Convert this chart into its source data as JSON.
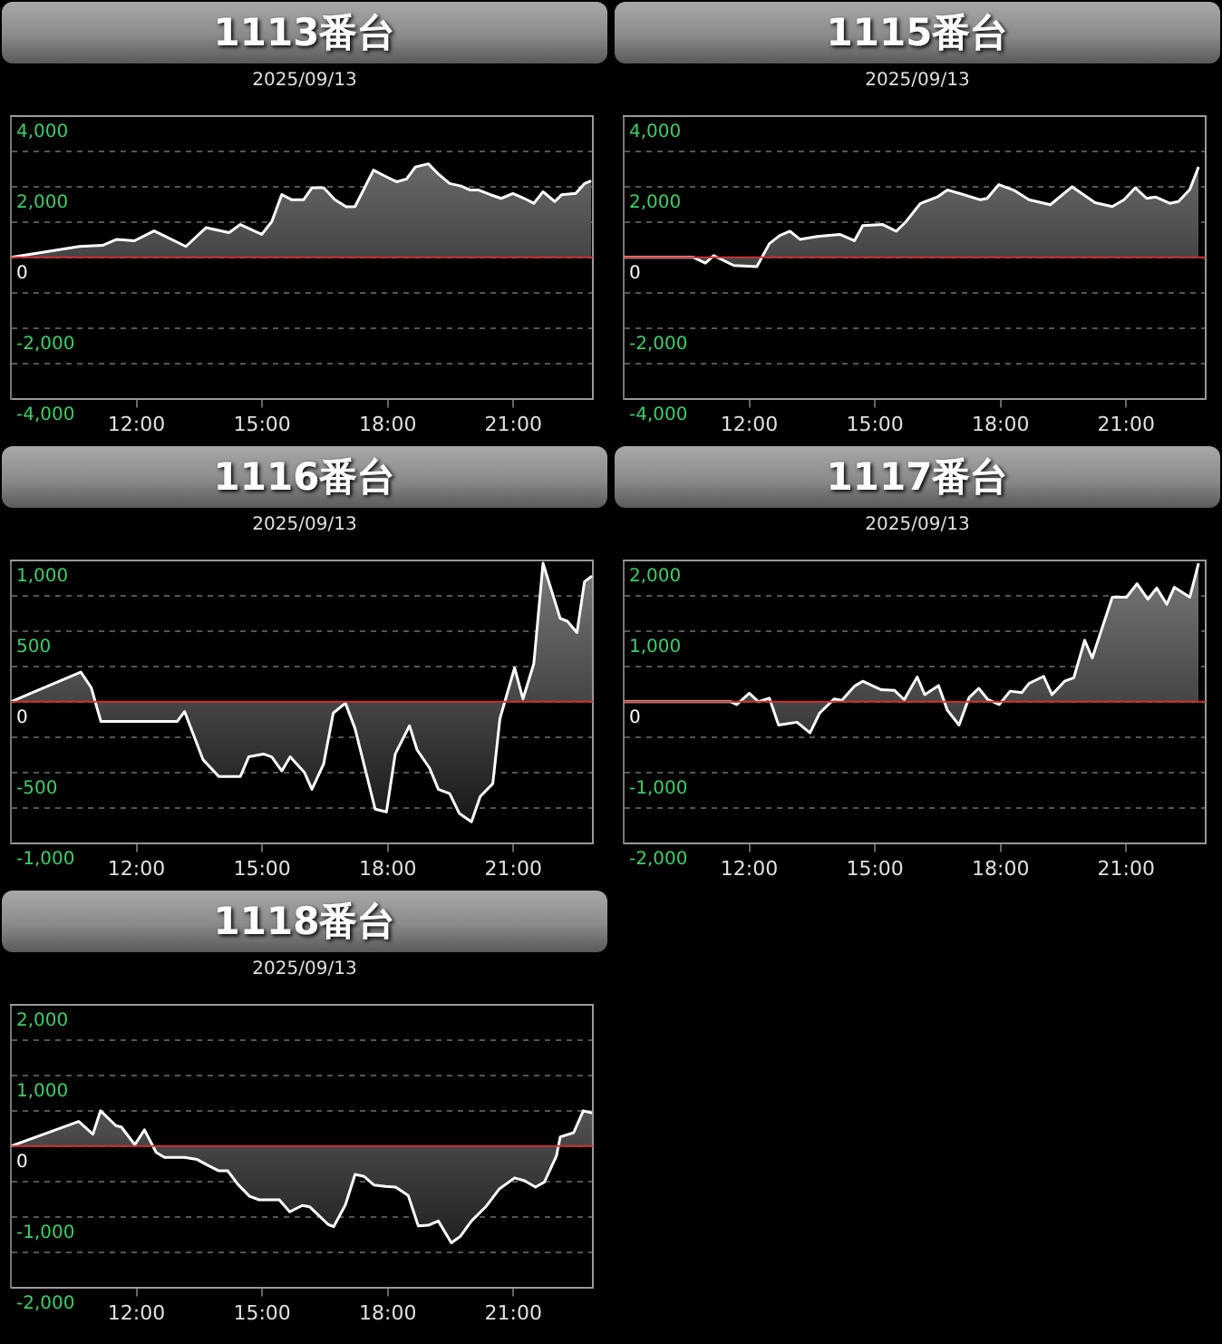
{
  "chart_data": [
    {
      "type": "area",
      "title": "1113番台",
      "subtitle": "2025/09/13",
      "xlim": [
        9,
        22.9
      ],
      "xticks": [
        {
          "value": 12,
          "label": "12:00"
        },
        {
          "value": 15,
          "label": "15:00"
        },
        {
          "value": 18,
          "label": "18:00"
        },
        {
          "value": 21,
          "label": "21:00"
        }
      ],
      "ylim": [
        -4000,
        4000
      ],
      "yticks": [
        {
          "value": -4000,
          "label": "-4,000"
        },
        {
          "value": -3000,
          "label": null
        },
        {
          "value": -2000,
          "label": "-2,000"
        },
        {
          "value": -1000,
          "label": null
        },
        {
          "value": 0,
          "label": "0"
        },
        {
          "value": 1000,
          "label": null
        },
        {
          "value": 2000,
          "label": "2,000"
        },
        {
          "value": 3000,
          "label": null
        },
        {
          "value": 4000,
          "label": "4,000"
        }
      ],
      "grid": "y",
      "legend": false,
      "marker": "none",
      "ref_lines": [
        {
          "axis": "y",
          "value": 0,
          "color": "#d03030"
        }
      ],
      "series": [
        {
          "color": "#ffffff",
          "x": [
            9,
            10.64,
            11.19,
            11.53,
            11.95,
            12.42,
            12.7,
            13.18,
            13.66,
            14.21,
            14.48,
            14.99,
            15.23,
            15.47,
            15.71,
            15.99,
            16.19,
            16.47,
            16.74,
            17.01,
            17.22,
            17.66,
            17.97,
            18.21,
            18.45,
            18.66,
            18.97,
            19.21,
            19.48,
            19.75,
            19.96,
            20.16,
            20.44,
            20.71,
            20.99,
            21.26,
            21.49,
            21.71,
            21.99,
            22.15,
            22.49,
            22.7,
            22.86
          ],
          "values": [
            0,
            310,
            340,
            510,
            470,
            750,
            590,
            310,
            840,
            700,
            930,
            650,
            1010,
            1780,
            1630,
            1630,
            1970,
            1970,
            1630,
            1430,
            1440,
            2470,
            2280,
            2140,
            2220,
            2560,
            2650,
            2360,
            2090,
            2020,
            1910,
            1910,
            1780,
            1670,
            1810,
            1670,
            1530,
            1860,
            1580,
            1770,
            1810,
            2090,
            2170
          ]
        }
      ]
    },
    {
      "type": "area",
      "title": "1115番台",
      "subtitle": "2025/09/13",
      "xlim": [
        9,
        22.9
      ],
      "xticks": [
        {
          "value": 12,
          "label": "12:00"
        },
        {
          "value": 15,
          "label": "15:00"
        },
        {
          "value": 18,
          "label": "18:00"
        },
        {
          "value": 21,
          "label": "21:00"
        }
      ],
      "ylim": [
        -4000,
        4000
      ],
      "yticks": [
        {
          "value": -4000,
          "label": "-4,000"
        },
        {
          "value": -3000,
          "label": null
        },
        {
          "value": -2000,
          "label": "-2,000"
        },
        {
          "value": -1000,
          "label": null
        },
        {
          "value": 0,
          "label": "0"
        },
        {
          "value": 1000,
          "label": null
        },
        {
          "value": 2000,
          "label": "2,000"
        },
        {
          "value": 3000,
          "label": null
        },
        {
          "value": 4000,
          "label": "4,000"
        }
      ],
      "grid": "y",
      "legend": false,
      "marker": "none",
      "ref_lines": [
        {
          "axis": "y",
          "value": 0,
          "color": "#d03030"
        }
      ],
      "series": [
        {
          "color": "#ffffff",
          "x": [
            9,
            10.67,
            10.95,
            11.15,
            11.63,
            12.18,
            12.48,
            12.73,
            12.97,
            13.21,
            13.62,
            14.16,
            14.51,
            14.71,
            15.19,
            15.51,
            15.74,
            16.08,
            16.49,
            16.73,
            17.11,
            17.52,
            17.68,
            17.96,
            18.34,
            18.68,
            19.19,
            19.71,
            20.26,
            20.67,
            20.95,
            21.22,
            21.49,
            21.7,
            22.04,
            22.25,
            22.52,
            22.73
          ],
          "values": [
            0,
            0,
            -160,
            50,
            -230,
            -260,
            390,
            620,
            740,
            510,
            590,
            650,
            470,
            900,
            930,
            740,
            1010,
            1520,
            1710,
            1910,
            1780,
            1630,
            1670,
            2060,
            1890,
            1630,
            1490,
            2000,
            1550,
            1440,
            1630,
            1970,
            1670,
            1710,
            1530,
            1580,
            1920,
            2560
          ]
        }
      ]
    },
    {
      "type": "area",
      "title": "1116番台",
      "subtitle": "2025/09/13",
      "xlim": [
        9,
        22.9
      ],
      "xticks": [
        {
          "value": 12,
          "label": "12:00"
        },
        {
          "value": 15,
          "label": "15:00"
        },
        {
          "value": 18,
          "label": "18:00"
        },
        {
          "value": 21,
          "label": "21:00"
        }
      ],
      "ylim": [
        -1000,
        1000
      ],
      "yticks": [
        {
          "value": -1000,
          "label": "-1,000"
        },
        {
          "value": -750,
          "label": null
        },
        {
          "value": -500,
          "label": "-500"
        },
        {
          "value": -250,
          "label": null
        },
        {
          "value": 0,
          "label": "0"
        },
        {
          "value": 250,
          "label": null
        },
        {
          "value": 500,
          "label": "500"
        },
        {
          "value": 750,
          "label": null
        },
        {
          "value": 1000,
          "label": "1,000"
        }
      ],
      "grid": "y",
      "legend": false,
      "marker": "none",
      "ref_lines": [
        {
          "axis": "y",
          "value": 0,
          "color": "#d03030"
        }
      ],
      "series": [
        {
          "color": "#ffffff",
          "x": [
            9,
            10.67,
            10.92,
            11.15,
            12.97,
            13.15,
            13.59,
            13.97,
            14.48,
            14.68,
            15.03,
            15.23,
            15.47,
            15.67,
            16.01,
            16.19,
            16.47,
            16.7,
            16.99,
            17.22,
            17.7,
            17.97,
            18.18,
            18.52,
            18.7,
            19.0,
            19.21,
            19.48,
            19.71,
            20.0,
            20.21,
            20.51,
            20.68,
            21.03,
            21.23,
            21.49,
            21.71,
            22.12,
            22.29,
            22.52,
            22.7,
            22.88
          ],
          "values": [
            0,
            210,
            100,
            -140,
            -140,
            -70,
            -410,
            -530,
            -530,
            -390,
            -370,
            -390,
            -490,
            -390,
            -500,
            -620,
            -440,
            -80,
            -10,
            -190,
            -760,
            -780,
            -370,
            -170,
            -340,
            -470,
            -620,
            -650,
            -790,
            -850,
            -670,
            -580,
            -120,
            240,
            20,
            270,
            980,
            590,
            570,
            490,
            850,
            890
          ]
        }
      ]
    },
    {
      "type": "area",
      "title": "1117番台",
      "subtitle": "2025/09/13",
      "xlim": [
        9,
        22.9
      ],
      "xticks": [
        {
          "value": 12,
          "label": "12:00"
        },
        {
          "value": 15,
          "label": "15:00"
        },
        {
          "value": 18,
          "label": "18:00"
        },
        {
          "value": 21,
          "label": "21:00"
        }
      ],
      "ylim": [
        -2000,
        2000
      ],
      "yticks": [
        {
          "value": -2000,
          "label": "-2,000"
        },
        {
          "value": -1500,
          "label": null
        },
        {
          "value": -1000,
          "label": "-1,000"
        },
        {
          "value": -500,
          "label": null
        },
        {
          "value": 0,
          "label": "0"
        },
        {
          "value": 500,
          "label": null
        },
        {
          "value": 1000,
          "label": "1,000"
        },
        {
          "value": 1500,
          "label": null
        },
        {
          "value": 2000,
          "label": "2,000"
        }
      ],
      "grid": "y",
      "legend": false,
      "marker": "none",
      "ref_lines": [
        {
          "axis": "y",
          "value": 0,
          "color": "#d03030"
        }
      ],
      "series": [
        {
          "color": "#ffffff",
          "x": [
            9,
            11.56,
            11.7,
            12.0,
            12.22,
            12.48,
            12.7,
            13.14,
            13.45,
            13.68,
            14.03,
            14.21,
            14.51,
            14.71,
            15.15,
            15.47,
            15.7,
            16.01,
            16.19,
            16.52,
            16.73,
            17.01,
            17.25,
            17.48,
            17.7,
            17.97,
            18.23,
            18.51,
            18.68,
            19.03,
            19.23,
            19.53,
            19.75,
            20.01,
            20.19,
            20.67,
            21.01,
            21.26,
            21.52,
            21.73,
            21.97,
            22.15,
            22.52,
            22.73
          ],
          "values": [
            0,
            0,
            -40,
            120,
            0,
            50,
            -330,
            -290,
            -440,
            -160,
            40,
            20,
            220,
            290,
            170,
            160,
            30,
            350,
            100,
            230,
            -120,
            -330,
            60,
            190,
            30,
            -40,
            150,
            130,
            260,
            360,
            100,
            290,
            340,
            870,
            620,
            1480,
            1480,
            1670,
            1450,
            1610,
            1380,
            1620,
            1480,
            1960
          ]
        }
      ]
    },
    {
      "type": "area",
      "title": "1118番台",
      "subtitle": "2025/09/13",
      "xlim": [
        9,
        22.9
      ],
      "xticks": [
        {
          "value": 12,
          "label": "12:00"
        },
        {
          "value": 15,
          "label": "15:00"
        },
        {
          "value": 18,
          "label": "18:00"
        },
        {
          "value": 21,
          "label": "21:00"
        }
      ],
      "ylim": [
        -2000,
        2000
      ],
      "yticks": [
        {
          "value": -2000,
          "label": "-2,000"
        },
        {
          "value": -1500,
          "label": null
        },
        {
          "value": -1000,
          "label": "-1,000"
        },
        {
          "value": -500,
          "label": null
        },
        {
          "value": 0,
          "label": "0"
        },
        {
          "value": 500,
          "label": null
        },
        {
          "value": 1000,
          "label": "1,000"
        },
        {
          "value": 1500,
          "label": null
        },
        {
          "value": 2000,
          "label": "2,000"
        }
      ],
      "grid": "y",
      "legend": false,
      "marker": "none",
      "ref_lines": [
        {
          "axis": "y",
          "value": 0,
          "color": "#d03030"
        }
      ],
      "series": [
        {
          "color": "#ffffff",
          "x": [
            9,
            10.62,
            10.96,
            11.14,
            11.51,
            11.64,
            11.96,
            12.19,
            12.47,
            12.67,
            13.15,
            13.45,
            13.7,
            13.97,
            14.18,
            14.42,
            14.7,
            14.93,
            15.41,
            15.66,
            15.96,
            16.14,
            16.58,
            16.71,
            16.99,
            17.22,
            17.44,
            17.67,
            17.95,
            18.19,
            18.49,
            18.73,
            18.97,
            19.21,
            19.52,
            19.73,
            20.0,
            20.34,
            20.66,
            21.03,
            21.27,
            21.53,
            21.74,
            22.03,
            22.12,
            22.44,
            22.67,
            22.88
          ],
          "values": [
            0,
            350,
            170,
            500,
            290,
            270,
            20,
            230,
            -90,
            -160,
            -160,
            -190,
            -270,
            -350,
            -350,
            -540,
            -710,
            -760,
            -760,
            -930,
            -840,
            -860,
            -1110,
            -1140,
            -830,
            -400,
            -430,
            -550,
            -570,
            -580,
            -700,
            -1130,
            -1120,
            -1060,
            -1370,
            -1280,
            -1060,
            -860,
            -610,
            -450,
            -490,
            -580,
            -510,
            -140,
            130,
            190,
            500,
            470
          ]
        }
      ]
    }
  ]
}
